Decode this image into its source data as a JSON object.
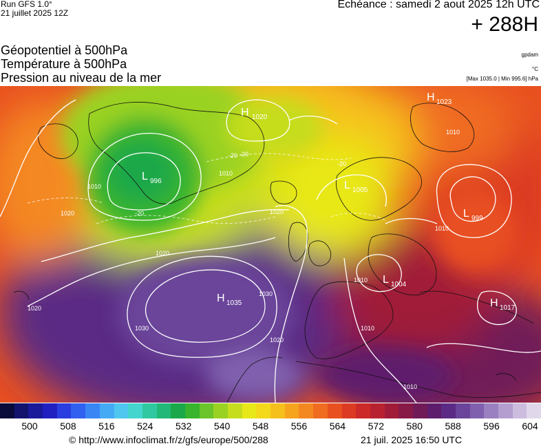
{
  "header": {
    "run_title": "Run GFS 1.0°",
    "run_date": "21 juillet 2025 12Z",
    "valid_time": "Echéance : samedi 2 aout 2025 12h UTC",
    "lead_time": "+ 288H"
  },
  "layers": [
    "Géopotentiel à 500hPa",
    "Température à 500hPa",
    "Pression au niveau de la mer"
  ],
  "units": {
    "geopotential": "gpdam",
    "temperature": "°C",
    "pressure": "[Max 1035.0 | Min 995.6] hPa"
  },
  "map": {
    "pressure_centers": [
      {
        "type": "H",
        "value": "1020"
      },
      {
        "type": "H",
        "value": "1023"
      },
      {
        "type": "L",
        "value": "996"
      },
      {
        "type": "L",
        "value": "1005"
      },
      {
        "type": "L",
        "value": "999"
      },
      {
        "type": "L",
        "value": "1004"
      },
      {
        "type": "H",
        "value": "1035"
      },
      {
        "type": "H",
        "value": "1017"
      }
    ],
    "isobar_labels": [
      "1010",
      "1010",
      "1020",
      "1020",
      "1020",
      "1020",
      "1030",
      "1030",
      "1020",
      "1010",
      "1010",
      "1010",
      "1010",
      "1010"
    ],
    "isotherm_labels": [
      "-20",
      "-20",
      "-20",
      "-20"
    ]
  },
  "colorbar": {
    "colors": [
      "#0b0b3b",
      "#13136e",
      "#1a1a9a",
      "#2020c0",
      "#2a3de0",
      "#3060f0",
      "#3a86f5",
      "#45aaf5",
      "#4fc7ee",
      "#45d5cf",
      "#30c8a0",
      "#22b878",
      "#1aa84a",
      "#38b42e",
      "#6ac42a",
      "#9ad224",
      "#c6dd1e",
      "#e8e818",
      "#f4d81a",
      "#f6c01c",
      "#f6a41e",
      "#f48820",
      "#f06c20",
      "#e85020",
      "#dc3a22",
      "#cc2a28",
      "#b82230",
      "#a01c38",
      "#881a48",
      "#701a58",
      "#5e1c6c",
      "#5a2a84",
      "#6a449a",
      "#8060ae",
      "#9a80c0",
      "#b49ed0",
      "#ccbcde",
      "#e0d8ea"
    ],
    "tick_labels": [
      "500",
      "508",
      "516",
      "524",
      "532",
      "540",
      "548",
      "556",
      "564",
      "572",
      "580",
      "588",
      "596",
      "604"
    ]
  },
  "footer": {
    "source": "© http://www.infoclimat.fr/z/gfs/europe/500/288",
    "generated": "21 juil. 2025 16:50 UTC"
  }
}
